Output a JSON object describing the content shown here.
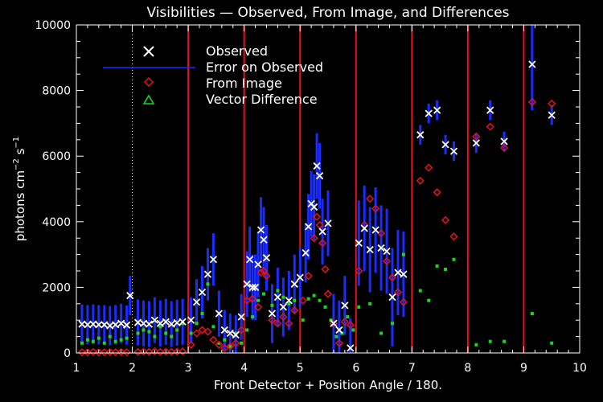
{
  "chart_data": {
    "type": "scatter",
    "title": "Visibilities — Observed, From Image, and Differences",
    "xlabel": "Front Detector + Position Angle / 180.",
    "ylabel": "photons cm",
    "ylabel_sup1": "−2",
    "ylabel_mid": " s",
    "ylabel_sup2": "−1",
    "xlim": [
      1,
      10
    ],
    "ylim": [
      0,
      10000
    ],
    "x_ticks": [
      "1",
      "2",
      "3",
      "4",
      "5",
      "6",
      "7",
      "8",
      "9",
      "10"
    ],
    "y_ticks": [
      "0",
      "2000",
      "4000",
      "6000",
      "8000",
      "10000"
    ],
    "grid": false,
    "legend_position": "top-left",
    "colors": {
      "background": "#000000",
      "axes": "#ffffff",
      "observed": "#ffffff",
      "error": "#1a2cff",
      "from_image": "#e8101a",
      "difference": "#19d91c",
      "detector_lines": "#e8101a"
    },
    "legend": [
      {
        "label": "Observed",
        "marker": "x"
      },
      {
        "label": "Error on Observed",
        "marker": "line"
      },
      {
        "label": "From Image",
        "marker": "diamond"
      },
      {
        "label": "Vector Difference",
        "marker": "triangle"
      }
    ],
    "reference_lines": {
      "dotted_x": [
        2
      ],
      "solid_x": [
        3,
        4,
        5,
        6,
        7,
        8,
        9
      ]
    },
    "series": [
      {
        "name": "Observed",
        "x": [
          1.1,
          1.2,
          1.3,
          1.4,
          1.5,
          1.6,
          1.7,
          1.8,
          1.9,
          1.96,
          2.1,
          2.2,
          2.3,
          2.4,
          2.5,
          2.6,
          2.7,
          2.8,
          2.9,
          3.05,
          3.15,
          3.25,
          3.35,
          3.45,
          3.55,
          3.65,
          3.75,
          3.85,
          3.95,
          4.05,
          4.1,
          4.15,
          4.2,
          4.25,
          4.3,
          4.35,
          4.4,
          4.5,
          4.6,
          4.7,
          4.8,
          4.9,
          5.0,
          5.1,
          5.15,
          5.2,
          5.25,
          5.3,
          5.35,
          5.4,
          5.5,
          5.6,
          5.7,
          5.8,
          5.9,
          6.05,
          6.15,
          6.25,
          6.35,
          6.45,
          6.55,
          6.65,
          6.75,
          6.85,
          7.15,
          7.3,
          7.45,
          7.6,
          7.75,
          8.15,
          8.4,
          8.65,
          9.15,
          9.5
        ],
        "y": [
          880,
          860,
          880,
          860,
          860,
          830,
          860,
          900,
          850,
          1750,
          930,
          900,
          880,
          1000,
          900,
          950,
          880,
          920,
          950,
          1000,
          1550,
          1850,
          2400,
          2850,
          1200,
          700,
          600,
          550,
          1100,
          2100,
          2850,
          2000,
          2000,
          2700,
          3750,
          3450,
          2900,
          1200,
          1700,
          1400,
          1600,
          2100,
          2300,
          3050,
          3850,
          4550,
          4450,
          5700,
          5400,
          3700,
          3950,
          900,
          700,
          1450,
          150,
          3350,
          3800,
          3150,
          3750,
          3200,
          3100,
          1700,
          2450,
          2400,
          6650,
          7300,
          7400,
          6350,
          6150,
          6400,
          7400,
          6450,
          8800,
          7250
        ],
        "err": [
          600,
          600,
          600,
          600,
          600,
          600,
          600,
          600,
          600,
          600,
          700,
          700,
          700,
          700,
          700,
          700,
          700,
          700,
          700,
          700,
          700,
          800,
          800,
          800,
          700,
          600,
          600,
          600,
          700,
          1000,
          1000,
          1000,
          1000,
          1000,
          1000,
          1000,
          1000,
          900,
          900,
          900,
          900,
          900,
          900,
          900,
          1000,
          1000,
          1000,
          1000,
          1000,
          1000,
          1000,
          900,
          900,
          900,
          900,
          1300,
          1300,
          1300,
          1300,
          1300,
          1300,
          1500,
          1300,
          1300,
          300,
          300,
          300,
          300,
          300,
          300,
          300,
          300,
          1400,
          300
        ]
      },
      {
        "name": "From Image",
        "x": [
          1.1,
          1.2,
          1.3,
          1.4,
          1.5,
          1.6,
          1.7,
          1.8,
          1.9,
          2.1,
          2.2,
          2.3,
          2.4,
          2.5,
          2.6,
          2.7,
          2.8,
          2.9,
          3.05,
          3.15,
          3.25,
          3.35,
          3.45,
          3.55,
          3.65,
          3.75,
          3.85,
          3.95,
          4.05,
          4.15,
          4.25,
          4.3,
          4.35,
          4.4,
          4.5,
          4.6,
          4.7,
          4.8,
          4.9,
          5.05,
          5.15,
          5.25,
          5.3,
          5.35,
          5.4,
          5.45,
          5.5,
          5.6,
          5.7,
          5.8,
          5.9,
          6.05,
          6.15,
          6.25,
          6.35,
          6.45,
          6.55,
          6.65,
          6.75,
          6.85,
          7.15,
          7.3,
          7.45,
          7.6,
          7.75,
          8.15,
          8.4,
          8.65,
          9.15,
          9.5
        ],
        "y": [
          20,
          20,
          30,
          20,
          20,
          30,
          20,
          30,
          20,
          30,
          40,
          30,
          50,
          30,
          40,
          30,
          40,
          50,
          250,
          600,
          700,
          650,
          400,
          250,
          150,
          200,
          300,
          700,
          1600,
          1650,
          1400,
          2450,
          2500,
          2350,
          1000,
          900,
          1100,
          900,
          1300,
          1600,
          2350,
          3500,
          4150,
          3900,
          3350,
          2550,
          1800,
          900,
          300,
          950,
          850,
          2500,
          3900,
          4700,
          4400,
          3650,
          2800,
          2300,
          1850,
          1550,
          5250,
          5650,
          4900,
          4050,
          3550,
          6600,
          6900,
          6250,
          7650,
          7600
        ]
      },
      {
        "name": "Vector Difference",
        "x": [
          1.1,
          1.2,
          1.3,
          1.4,
          1.5,
          1.6,
          1.7,
          1.8,
          1.9,
          1.96,
          2.1,
          2.2,
          2.3,
          2.4,
          2.5,
          2.6,
          2.7,
          2.8,
          2.9,
          3.05,
          3.15,
          3.25,
          3.35,
          3.45,
          3.55,
          3.65,
          3.75,
          3.85,
          3.95,
          4.05,
          4.15,
          4.25,
          4.35,
          4.5,
          4.6,
          4.7,
          4.8,
          4.9,
          5.05,
          5.15,
          5.25,
          5.35,
          5.45,
          5.55,
          5.65,
          5.75,
          5.85,
          5.95,
          6.05,
          6.25,
          6.45,
          6.65,
          6.85,
          7.15,
          7.3,
          7.45,
          7.6,
          7.75,
          8.15,
          8.4,
          8.65,
          9.15,
          9.5
        ],
        "y": [
          300,
          400,
          350,
          450,
          300,
          500,
          350,
          400,
          450,
          1750,
          600,
          700,
          650,
          500,
          800,
          600,
          500,
          700,
          900,
          600,
          900,
          1200,
          2100,
          800,
          300,
          400,
          200,
          600,
          300,
          700,
          1100,
          1600,
          1800,
          1450,
          1900,
          1700,
          1500,
          1600,
          1000,
          1650,
          1750,
          1600,
          1400,
          1000,
          500,
          600,
          1100,
          700,
          1400,
          1500,
          600,
          900,
          3000,
          1900,
          1600,
          2650,
          2550,
          2850,
          250,
          350,
          350,
          1200,
          300
        ]
      }
    ]
  }
}
